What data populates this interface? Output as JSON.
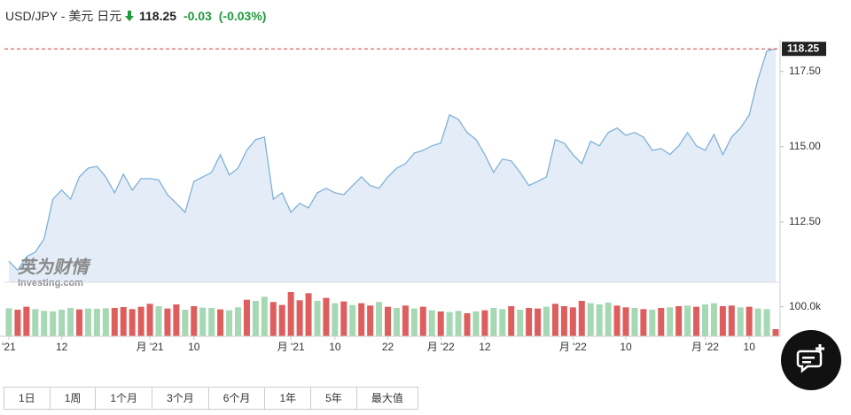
{
  "header": {
    "symbol": "USD/JPY - 美元 日元",
    "change": "-0.03",
    "change_pct": "(-0.03%)"
  },
  "chart_data": {
    "type": "line",
    "categories": [
      "'21",
      null,
      null,
      null,
      null,
      null,
      "12",
      null,
      null,
      null,
      null,
      null,
      null,
      null,
      null,
      null,
      "月 '21",
      null,
      null,
      null,
      null,
      "10",
      null,
      null,
      null,
      null,
      null,
      null,
      null,
      null,
      null,
      null,
      "月 '21",
      null,
      null,
      null,
      null,
      "10",
      null,
      null,
      null,
      null,
      null,
      "22",
      null,
      null,
      null,
      null,
      null,
      "月 '22",
      null,
      null,
      null,
      null,
      "12",
      null,
      null,
      null,
      null,
      null,
      null,
      null,
      null,
      null,
      "月 '22",
      null,
      null,
      null,
      null,
      null,
      "10",
      null,
      null,
      null,
      null,
      null,
      null,
      null,
      null,
      "月 '22",
      null,
      null,
      null,
      null,
      "10",
      null,
      null,
      null
    ],
    "values": [
      111.2,
      110.9,
      111.35,
      111.5,
      111.94,
      113.26,
      113.56,
      113.26,
      114.0,
      114.29,
      114.35,
      114.0,
      113.47,
      114.09,
      113.56,
      113.94,
      113.94,
      113.9,
      113.41,
      113.12,
      112.82,
      113.85,
      114.0,
      114.15,
      114.74,
      114.06,
      114.29,
      114.88,
      115.24,
      115.32,
      113.26,
      113.47,
      112.82,
      113.12,
      112.97,
      113.47,
      113.62,
      113.47,
      113.41,
      113.71,
      114.0,
      113.71,
      113.62,
      114.0,
      114.29,
      114.44,
      114.79,
      114.88,
      115.03,
      115.12,
      116.06,
      115.91,
      115.47,
      115.24,
      114.74,
      114.15,
      114.59,
      114.53,
      114.15,
      113.71,
      113.85,
      114.0,
      115.24,
      115.12,
      114.74,
      114.44,
      115.18,
      115.03,
      115.47,
      115.62,
      115.38,
      115.47,
      115.32,
      114.88,
      114.94,
      114.74,
      115.03,
      115.47,
      115.03,
      114.88,
      115.41,
      114.74,
      115.32,
      115.62,
      116.06,
      117.24,
      118.18,
      118.25
    ],
    "color": "#7fb0d8",
    "fill": "#e4edf7",
    "ylim": [
      110.5,
      118.55
    ],
    "yticks": [
      {
        "value": 112.5,
        "label": "112.50"
      },
      {
        "value": 115,
        "label": "115.00"
      },
      {
        "value": 117.5,
        "label": "117.50"
      }
    ],
    "last_price": {
      "value": 118.25,
      "label": "118.25"
    },
    "last_price_color": "#d9363e",
    "volume": {
      "values": [
        95000,
        90000,
        100000,
        92000,
        86000,
        84000,
        90000,
        96000,
        91000,
        94000,
        93000,
        95000,
        96000,
        99000,
        92000,
        100000,
        110000,
        102000,
        94000,
        108000,
        90000,
        102000,
        97000,
        96000,
        91000,
        88000,
        98000,
        124000,
        120000,
        134000,
        116000,
        106000,
        150000,
        122000,
        146000,
        120000,
        130000,
        112000,
        118000,
        106000,
        112000,
        104000,
        116000,
        100000,
        96000,
        104000,
        94000,
        100000,
        88000,
        84000,
        82000,
        86000,
        78000,
        84000,
        88000,
        96000,
        92000,
        102000,
        90000,
        96000,
        94000,
        100000,
        110000,
        102000,
        98000,
        120000,
        112000,
        108000,
        114000,
        104000,
        98000,
        96000,
        92000,
        90000,
        96000,
        98000,
        102000,
        104000,
        100000,
        108000,
        112000,
        102000,
        104000,
        98000,
        100000,
        94000,
        92000,
        24000
      ],
      "directions": [
        "up",
        "down",
        "down",
        "up",
        "up",
        "up",
        "up",
        "up",
        "down",
        "up",
        "up",
        "up",
        "down",
        "down",
        "down",
        "down",
        "down",
        "up",
        "down",
        "down",
        "up",
        "down",
        "up",
        "up",
        "down",
        "up",
        "up",
        "down",
        "up",
        "up",
        "down",
        "down",
        "down",
        "down",
        "down",
        "up",
        "down",
        "up",
        "down",
        "up",
        "down",
        "down",
        "up",
        "down",
        "up",
        "down",
        "up",
        "down",
        "up",
        "down",
        "up",
        "up",
        "down",
        "up",
        "down",
        "up",
        "up",
        "down",
        "up",
        "down",
        "down",
        "up",
        "down",
        "down",
        "down",
        "down",
        "up",
        "up",
        "up",
        "down",
        "down",
        "up",
        "down",
        "up",
        "down",
        "up",
        "down",
        "up",
        "down",
        "up",
        "up",
        "down",
        "down",
        "up",
        "down",
        "up",
        "up",
        "down"
      ],
      "up_color": "#a6d8b4",
      "down_color": "#de5d5d",
      "ylim": [
        0,
        180000
      ],
      "yticks": [
        {
          "value": 100000,
          "label": "100.0k"
        }
      ]
    }
  },
  "watermark": {
    "brand": "英为财情",
    "site": "Investing.com"
  },
  "range_buttons": [
    "1日",
    "1周",
    "1个月",
    "3个月",
    "6个月",
    "1年",
    "5年",
    "最大值"
  ]
}
